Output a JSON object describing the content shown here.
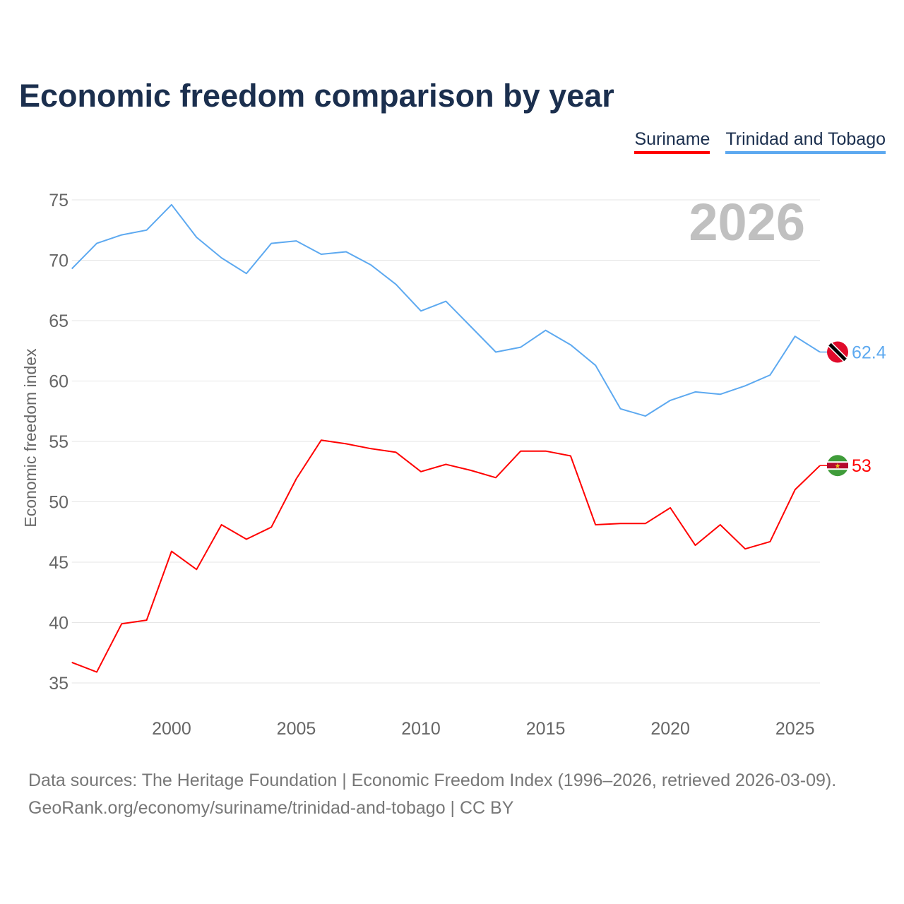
{
  "title": "Economic freedom comparison by year",
  "legend": [
    {
      "label": "Suriname",
      "color": "#ff0000"
    },
    {
      "label": "Trinidad and Tobago",
      "color": "#5da9f0"
    }
  ],
  "year_watermark": "2026",
  "footer": {
    "line1": "Data sources: The Heritage Foundation | Economic Freedom Index (1996–2026, retrieved 2026-03-09).",
    "line2": "GeoRank.org/economy/suriname/trinidad-and-tobago | CC BY"
  },
  "chart_data": {
    "type": "line",
    "title": "Economic freedom comparison by year",
    "xlabel": "",
    "ylabel": "Economic freedom index",
    "xlim": [
      1996,
      2026
    ],
    "ylim": [
      35,
      75
    ],
    "xticks": [
      2000,
      2005,
      2010,
      2015,
      2020,
      2025
    ],
    "yticks": [
      35,
      40,
      45,
      50,
      55,
      60,
      65,
      70,
      75
    ],
    "grid": true,
    "legend_position": "top-right",
    "x": [
      1996,
      1997,
      1998,
      1999,
      2000,
      2001,
      2002,
      2003,
      2004,
      2005,
      2006,
      2007,
      2008,
      2009,
      2010,
      2011,
      2012,
      2013,
      2014,
      2015,
      2016,
      2017,
      2018,
      2019,
      2020,
      2021,
      2022,
      2023,
      2024,
      2025,
      2026
    ],
    "series": [
      {
        "name": "Suriname",
        "color": "#ff0000",
        "end_label": "53",
        "values": [
          36.7,
          35.9,
          39.9,
          40.2,
          45.9,
          44.4,
          48.1,
          46.9,
          47.9,
          51.9,
          55.1,
          54.8,
          54.4,
          54.1,
          52.5,
          53.1,
          52.6,
          52.0,
          54.2,
          54.2,
          53.8,
          48.1,
          48.2,
          48.2,
          49.5,
          46.4,
          48.1,
          46.1,
          46.7,
          51.0,
          53.0
        ]
      },
      {
        "name": "Trinidad and Tobago",
        "color": "#5da9f0",
        "end_label": "62.4",
        "values": [
          69.3,
          71.4,
          72.1,
          72.5,
          74.6,
          71.9,
          70.2,
          68.9,
          71.4,
          71.6,
          70.5,
          70.7,
          69.6,
          68.0,
          65.8,
          66.6,
          64.5,
          62.4,
          62.8,
          64.2,
          63.0,
          61.3,
          57.7,
          57.1,
          58.4,
          59.1,
          58.9,
          59.6,
          60.5,
          63.7,
          62.4
        ]
      }
    ]
  }
}
